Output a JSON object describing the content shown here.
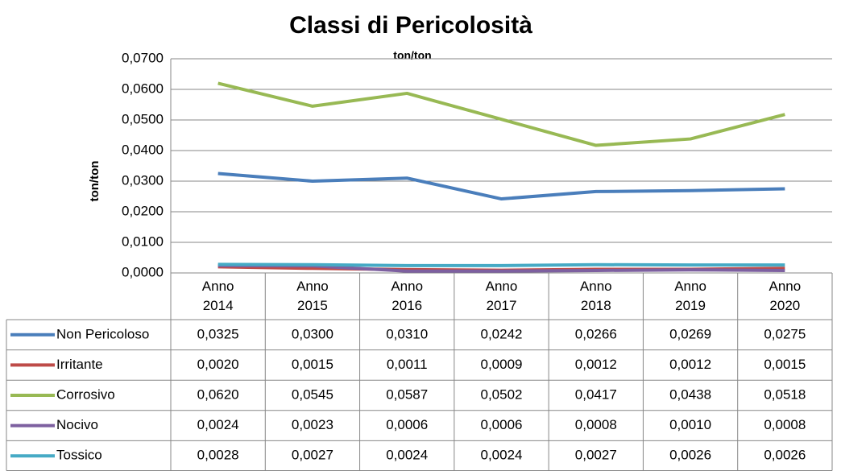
{
  "chart_data": {
    "type": "line",
    "title": "Classi di Pericolosità",
    "subtitle": "ton/ton",
    "ylabel": "ton/ton",
    "categories": [
      "Anno 2014",
      "Anno 2015",
      "Anno 2016",
      "Anno 2017",
      "Anno 2018",
      "Anno 2019",
      "Anno 2020"
    ],
    "ylim": [
      0,
      0.07
    ],
    "yticks": [
      {
        "value": 0,
        "label": "0,0000"
      },
      {
        "value": 0.01,
        "label": "0,0100"
      },
      {
        "value": 0.02,
        "label": "0,0200"
      },
      {
        "value": 0.03,
        "label": "0,0300"
      },
      {
        "value": 0.04,
        "label": "0,0400"
      },
      {
        "value": 0.05,
        "label": "0,0500"
      },
      {
        "value": 0.06,
        "label": "0,0600"
      },
      {
        "value": 0.07,
        "label": "0,0700"
      }
    ],
    "grid": true,
    "series": [
      {
        "name": "Non Pericoloso",
        "color": "#4a7ebb",
        "values": [
          0.0325,
          0.03,
          0.031,
          0.0242,
          0.0266,
          0.0269,
          0.0275
        ],
        "value_labels": [
          "0,0325",
          "0,0300",
          "0,0310",
          "0,0242",
          "0,0266",
          "0,0269",
          "0,0275"
        ]
      },
      {
        "name": "Irritante",
        "color": "#be4b48",
        "values": [
          0.002,
          0.0015,
          0.0011,
          0.0009,
          0.0012,
          0.0012,
          0.0015
        ],
        "value_labels": [
          "0,0020",
          "0,0015",
          "0,0011",
          "0,0009",
          "0,0012",
          "0,0012",
          "0,0015"
        ]
      },
      {
        "name": "Corrosivo",
        "color": "#98b954",
        "values": [
          0.062,
          0.0545,
          0.0587,
          0.0502,
          0.0417,
          0.0438,
          0.0518
        ],
        "value_labels": [
          "0,0620",
          "0,0545",
          "0,0587",
          "0,0502",
          "0,0417",
          "0,0438",
          "0,0518"
        ]
      },
      {
        "name": "Nocivo",
        "color": "#7d60a0",
        "values": [
          0.0024,
          0.0023,
          0.0006,
          0.0006,
          0.0008,
          0.001,
          0.0008
        ],
        "value_labels": [
          "0,0024",
          "0,0023",
          "0,0006",
          "0,0006",
          "0,0008",
          "0,0010",
          "0,0008"
        ]
      },
      {
        "name": "Tossico",
        "color": "#46aac5",
        "values": [
          0.0028,
          0.0027,
          0.0024,
          0.0024,
          0.0027,
          0.0026,
          0.0026
        ],
        "value_labels": [
          "0,0028",
          "0,0027",
          "0,0024",
          "0,0024",
          "0,0027",
          "0,0026",
          "0,0026"
        ]
      }
    ]
  }
}
